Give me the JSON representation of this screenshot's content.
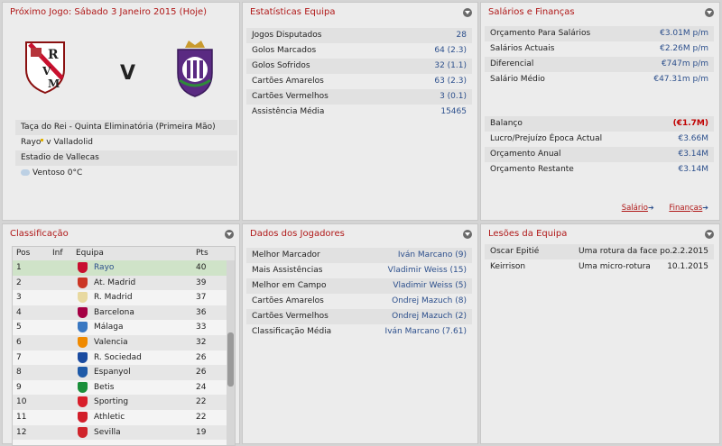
{
  "match": {
    "title": "Próximo Jogo: Sábado 3 Janeiro 2015 (Hoje)",
    "vs": "V",
    "competition": "Taça do Rei - Quinta Eliminatória (Primeira Mão)",
    "home": "Rayo",
    "sep": "v",
    "away": "Valladolid",
    "stadium": "Estadio de Vallecas",
    "weather": "Ventoso 0°C"
  },
  "stats": {
    "title": "Estatísticas Equipa",
    "rows": [
      {
        "label": "Jogos Disputados",
        "value": "28"
      },
      {
        "label": "Golos Marcados",
        "value": "64 (2.3)"
      },
      {
        "label": "Golos Sofridos",
        "value": "32 (1.1)"
      },
      {
        "label": "Cartões Amarelos",
        "value": "63 (2.3)"
      },
      {
        "label": "Cartões Vermelhos",
        "value": "3 (0.1)"
      },
      {
        "label": "Assistência Média",
        "value": "15465"
      }
    ]
  },
  "finance": {
    "title": "Salários e Finanças",
    "rows": [
      {
        "label": "Orçamento Para Salários",
        "value": "€3.01M p/m"
      },
      {
        "label": "Salários Actuais",
        "value": "€2.26M p/m"
      },
      {
        "label": "Diferencial",
        "value": "€747m p/m"
      },
      {
        "label": "Salário Médio",
        "value": "€47.31m p/m"
      }
    ],
    "rows2": [
      {
        "label": "Balanço",
        "value": "(€1.7M)"
      },
      {
        "label": "Lucro/Prejuízo Época Actual",
        "value": "€3.66M"
      },
      {
        "label": "Orçamento Anual",
        "value": "€3.14M"
      },
      {
        "label": "Orçamento Restante",
        "value": "€3.14M"
      }
    ],
    "link_salary": "Salário",
    "link_finance": "Finanças"
  },
  "table": {
    "title": "Classificação",
    "headers": {
      "pos": "Pos",
      "inf": "Inf",
      "team": "Equipa",
      "pts": "Pts"
    },
    "rows": [
      {
        "pos": "1",
        "team": "Rayo",
        "pts": "40",
        "color": "#c8102e"
      },
      {
        "pos": "2",
        "team": "At. Madrid",
        "pts": "39",
        "color": "#cb3524"
      },
      {
        "pos": "3",
        "team": "R. Madrid",
        "pts": "37",
        "color": "#e8d9a0"
      },
      {
        "pos": "4",
        "team": "Barcelona",
        "pts": "36",
        "color": "#a50044"
      },
      {
        "pos": "5",
        "team": "Málaga",
        "pts": "33",
        "color": "#3a78c2"
      },
      {
        "pos": "6",
        "team": "Valencia",
        "pts": "32",
        "color": "#f08a00"
      },
      {
        "pos": "7",
        "team": "R. Sociedad",
        "pts": "26",
        "color": "#1a4ba0"
      },
      {
        "pos": "8",
        "team": "Espanyol",
        "pts": "26",
        "color": "#1e5aa8"
      },
      {
        "pos": "9",
        "team": "Betis",
        "pts": "24",
        "color": "#1a8f3a"
      },
      {
        "pos": "10",
        "team": "Sporting",
        "pts": "22",
        "color": "#d81e2a"
      },
      {
        "pos": "11",
        "team": "Athletic",
        "pts": "22",
        "color": "#d21f2b"
      },
      {
        "pos": "12",
        "team": "Sevilla",
        "pts": "19",
        "color": "#d0242b"
      }
    ]
  },
  "players": {
    "title": "Dados dos Jogadores",
    "rows": [
      {
        "label": "Melhor Marcador",
        "value": "Iván Marcano (9)"
      },
      {
        "label": "Mais Assistências",
        "value": "Vladimir Weiss (15)"
      },
      {
        "label": "Melhor em Campo",
        "value": "Vladimir Weiss (5)"
      },
      {
        "label": "Cartões Amarelos",
        "value": "Ondrej Mazuch (8)"
      },
      {
        "label": "Cartões Vermelhos",
        "value": "Ondrej Mazuch (2)"
      },
      {
        "label": "Classificação Média",
        "value": "Iván Marcano (7.61)"
      }
    ]
  },
  "injuries": {
    "title": "Lesões da Equipa",
    "rows": [
      {
        "name": "Oscar Epitié",
        "injury": "Uma rotura da face po..",
        "date": "2.2.2015"
      },
      {
        "name": "Keirrison",
        "injury": "Uma micro-rotura",
        "date": "10.1.2015"
      }
    ]
  }
}
